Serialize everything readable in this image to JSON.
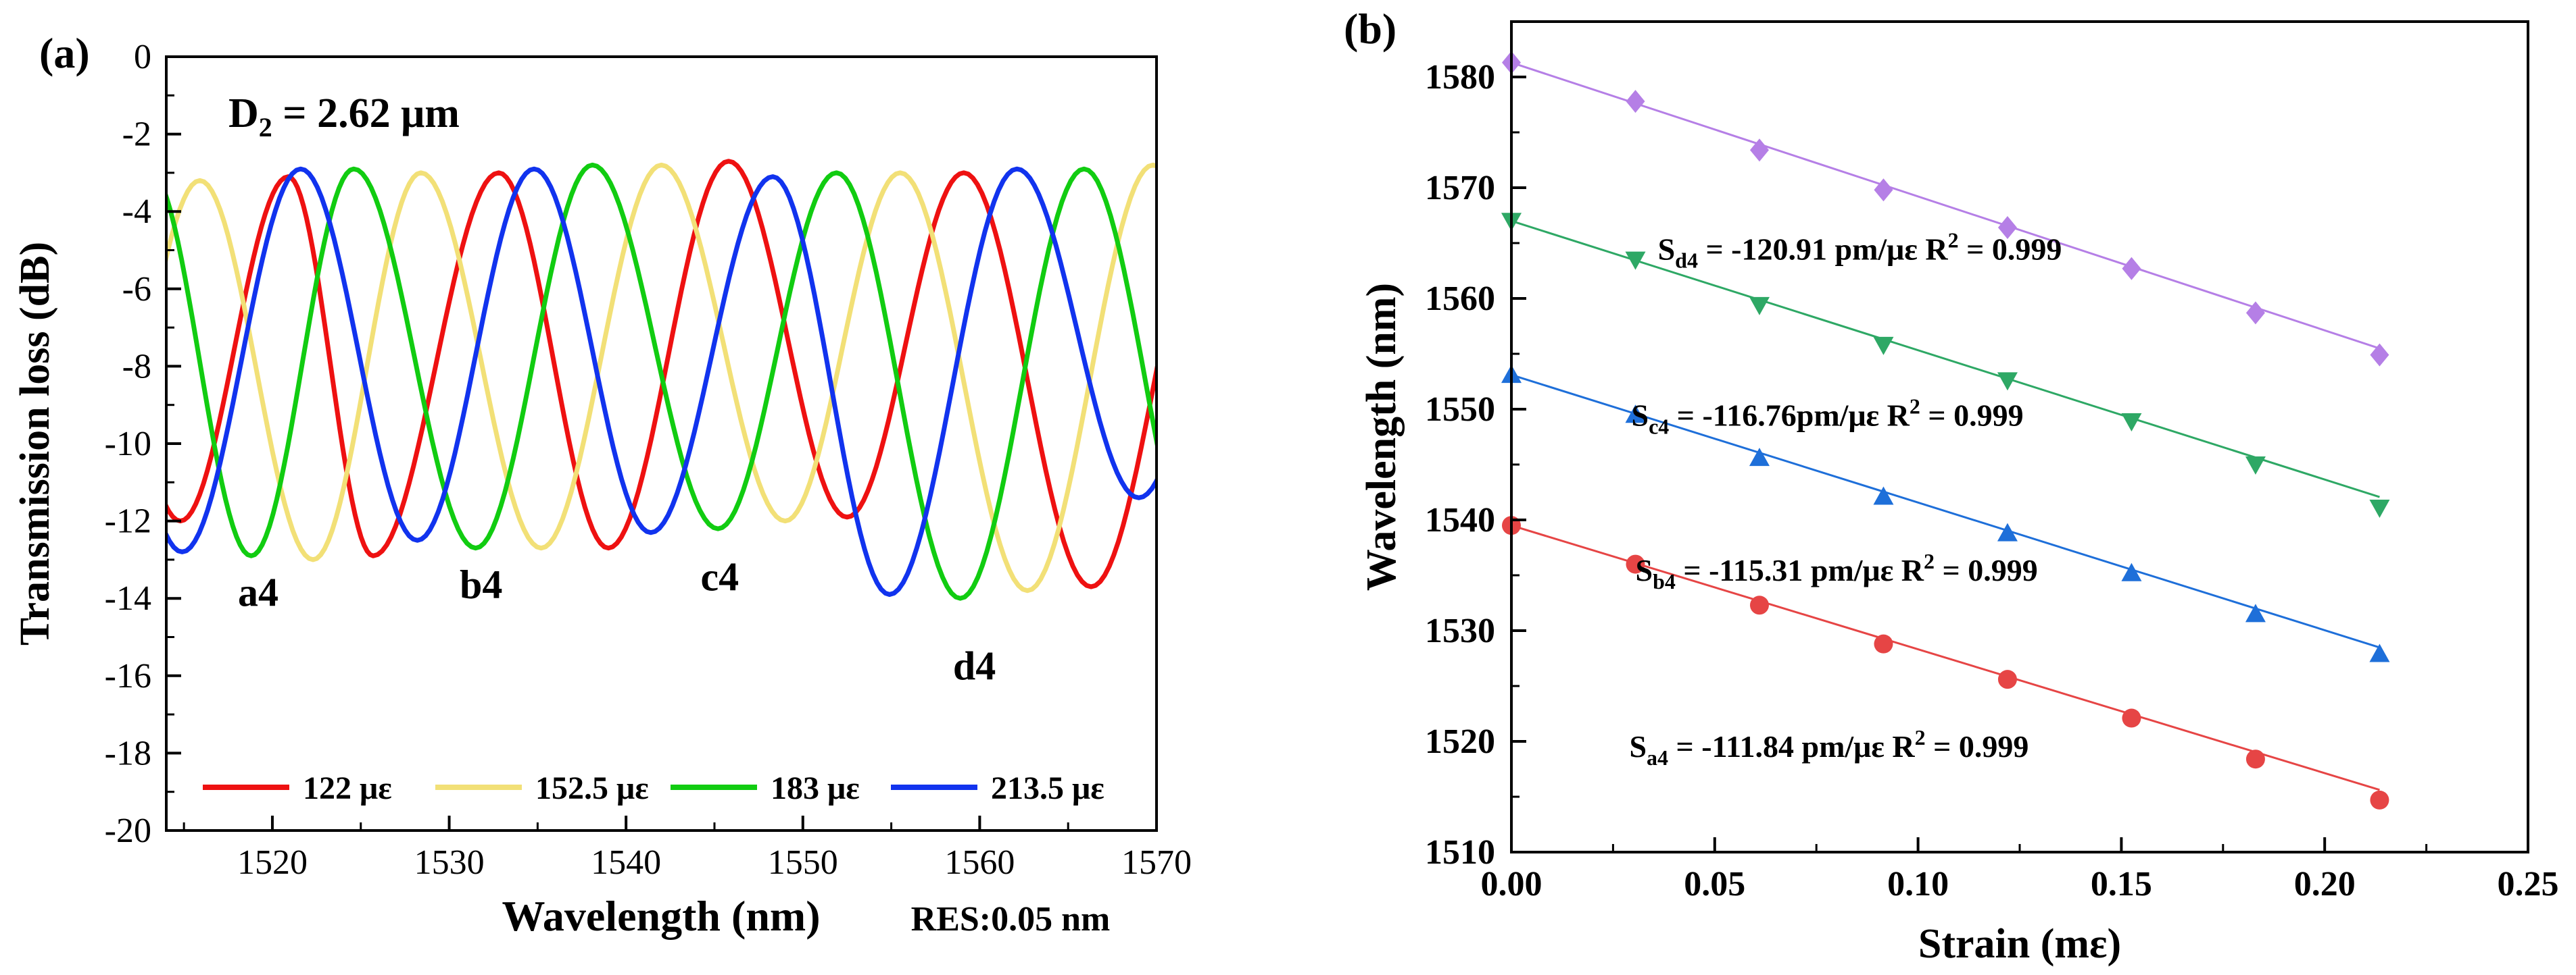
{
  "chart_data": [
    {
      "type": "line",
      "panel_label": "(a)",
      "annotation": {
        "main": "D",
        "sub": "2",
        "rest": " = 2.62 μm"
      },
      "xlabel": "Wavelength (nm)",
      "ylabel": "Transmission loss (dB)",
      "xlim": [
        1514,
        1570
      ],
      "ylim": [
        -20,
        0
      ],
      "xticks": [
        1520,
        1530,
        1540,
        1550,
        1560,
        1570
      ],
      "yticks": [
        0,
        -2,
        -4,
        -6,
        -8,
        -10,
        -12,
        -14,
        -16,
        -18,
        -20
      ],
      "resolution_note": "RES:0.05 nm",
      "dip_labels": [
        {
          "text": "a4",
          "x": 1519.2,
          "y": -14.2
        },
        {
          "text": "b4",
          "x": 1531.8,
          "y": -14.0
        },
        {
          "text": "c4",
          "x": 1545.3,
          "y": -13.8
        },
        {
          "text": "d4",
          "x": 1559.7,
          "y": -16.1
        }
      ],
      "series": [
        {
          "name": "122 με",
          "color": "#ee1111",
          "peaks": [
            [
              1520.9,
              -3.1
            ],
            [
              1532.8,
              -3.0
            ],
            [
              1545.8,
              -2.7
            ],
            [
              1559.1,
              -3.0
            ]
          ],
          "dips": [
            [
              1514.8,
              -12.0
            ],
            [
              1525.7,
              -12.9
            ],
            [
              1539.0,
              -12.7
            ],
            [
              1552.5,
              -11.9
            ],
            [
              1566.3,
              -13.7
            ]
          ]
        },
        {
          "name": "152.5 με",
          "color": "#f2e077",
          "peaks": [
            [
              1515.9,
              -3.2
            ],
            [
              1528.4,
              -3.0
            ],
            [
              1542.0,
              -2.8
            ],
            [
              1555.5,
              -3.0
            ],
            [
              1569.8,
              -2.8
            ]
          ],
          "dips": [
            [
              1522.3,
              -13.0
            ],
            [
              1535.2,
              -12.7
            ],
            [
              1549.0,
              -12.0
            ],
            [
              1562.7,
              -13.8
            ]
          ]
        },
        {
          "name": "183 με",
          "color": "#11cc11",
          "peaks": [
            [
              1524.6,
              -2.9
            ],
            [
              1538.1,
              -2.8
            ],
            [
              1551.9,
              -3.0
            ],
            [
              1565.9,
              -2.9
            ]
          ],
          "dips": [
            [
              1518.8,
              -12.9
            ],
            [
              1531.5,
              -12.7
            ],
            [
              1545.2,
              -12.2
            ],
            [
              1558.9,
              -14.0
            ]
          ]
        },
        {
          "name": "213.5 με",
          "color": "#1133ee",
          "peaks": [
            [
              1521.6,
              -2.9
            ],
            [
              1534.8,
              -2.9
            ],
            [
              1548.3,
              -3.1
            ],
            [
              1562.1,
              -2.9
            ]
          ],
          "dips": [
            [
              1514.9,
              -12.8
            ],
            [
              1528.2,
              -12.5
            ],
            [
              1541.4,
              -12.3
            ],
            [
              1554.9,
              -13.9
            ],
            [
              1569.0,
              -11.4
            ]
          ]
        }
      ]
    },
    {
      "type": "scatter",
      "panel_label": "(b)",
      "xlabel": "Strain (mε)",
      "ylabel": "Wavelength (nm)",
      "xlim": [
        0,
        0.25
      ],
      "ylim": [
        1510,
        1585
      ],
      "xticks": [
        "0.00",
        "0.05",
        "0.10",
        "0.15",
        "0.20",
        "0.25"
      ],
      "yticks": [
        1510,
        1520,
        1530,
        1540,
        1550,
        1560,
        1570,
        1580
      ],
      "x": [
        0,
        0.0305,
        0.061,
        0.0915,
        0.122,
        0.1525,
        0.183,
        0.2135
      ],
      "series": [
        {
          "name": "d4",
          "marker": "diamond",
          "color": "#b57fe6",
          "values": [
            1581.3,
            1577.8,
            1573.4,
            1569.8,
            1566.4,
            1562.7,
            1558.7,
            1554.9
          ],
          "fit": {
            "intercept": 1581.3,
            "slope": -120.91
          },
          "label": {
            "s": "S",
            "sub": "d4",
            "mid": " = -120.91 pm/με  R",
            "sup": "2",
            "end": " = 0.999",
            "x": 0.036,
            "y": 1563.5
          }
        },
        {
          "name": "c4",
          "marker": "triangle-down",
          "color": "#2ea865",
          "values": [
            1567.0,
            1563.5,
            1559.4,
            1555.8,
            1552.6,
            1548.9,
            1545.0,
            1541.1
          ],
          "fit": {
            "intercept": 1567.0,
            "slope": -116.76
          },
          "label": {
            "s": "S",
            "sub": "c4",
            "mid": " = -116.76pm/με  R",
            "sup": "2",
            "end": " = 0.999",
            "x": 0.0295,
            "y": 1548.5
          }
        },
        {
          "name": "b4",
          "marker": "triangle-up",
          "color": "#1e6fd9",
          "values": [
            1553.1,
            1549.5,
            1545.6,
            1542.1,
            1538.8,
            1535.2,
            1531.5,
            1527.9
          ],
          "fit": {
            "intercept": 1553.1,
            "slope": -115.31
          },
          "label": {
            "s": "S",
            "sub": "b4",
            "mid": " = -115.31 pm/με  R",
            "sup": "2",
            "end": " = 0.999",
            "x": 0.0305,
            "y": 1534.5
          }
        },
        {
          "name": "a4",
          "marker": "circle",
          "color": "#e64545",
          "values": [
            1539.5,
            1536.0,
            1532.3,
            1528.8,
            1525.6,
            1522.1,
            1518.4,
            1514.7
          ],
          "fit": {
            "intercept": 1539.5,
            "slope": -111.84
          },
          "label": {
            "s": "S",
            "sub": "a4",
            "mid": " = -111.84 pm/με  R",
            "sup": "2",
            "end": " = 0.999",
            "x": 0.029,
            "y": 1518.6
          }
        }
      ]
    }
  ]
}
